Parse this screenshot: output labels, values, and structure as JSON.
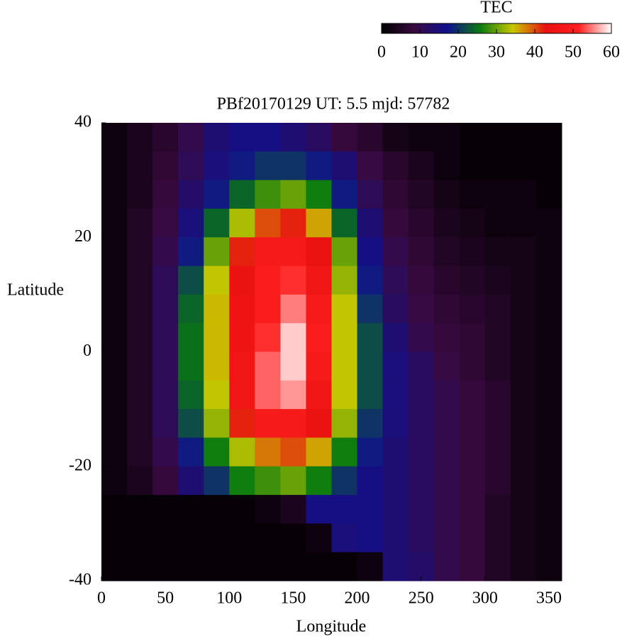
{
  "chart_data": {
    "type": "heatmap",
    "title": "PBf20170129  UT: 5.5  mjd: 57782",
    "xlabel": "Longitude",
    "ylabel": "Latitude",
    "xlim": [
      0,
      360
    ],
    "xticks": [
      0,
      50,
      100,
      150,
      200,
      250,
      300,
      350
    ],
    "ylim": [
      -40,
      40
    ],
    "yticks": [
      -40,
      -20,
      0,
      20,
      40
    ],
    "x": [
      10,
      30,
      50,
      70,
      90,
      110,
      130,
      150,
      170,
      190,
      210,
      230,
      250,
      270,
      290,
      310,
      330,
      350
    ],
    "y": [
      37.5,
      32.5,
      27.5,
      22.5,
      17.5,
      12.5,
      7.5,
      2.5,
      -2.5,
      -7.5,
      -12.5,
      -17.5,
      -22.5,
      -27.5,
      -32.5,
      -37.5
    ],
    "z": [
      [
        2,
        4,
        6,
        10,
        14,
        16,
        16,
        14,
        12,
        8,
        6,
        3,
        2,
        2,
        1,
        1,
        1,
        1
      ],
      [
        2,
        4,
        7,
        11,
        15,
        18,
        20,
        20,
        18,
        14,
        9,
        6,
        4,
        2,
        1,
        1,
        1,
        1
      ],
      [
        2,
        4,
        8,
        13,
        18,
        24,
        28,
        30,
        26,
        18,
        11,
        7,
        5,
        3,
        2,
        2,
        2,
        1
      ],
      [
        2,
        5,
        9,
        15,
        24,
        33,
        40,
        42,
        36,
        24,
        14,
        8,
        6,
        4,
        3,
        2,
        2,
        2
      ],
      [
        2,
        5,
        10,
        18,
        30,
        42,
        48,
        48,
        44,
        30,
        16,
        10,
        7,
        5,
        4,
        3,
        3,
        2
      ],
      [
        2,
        5,
        11,
        22,
        34,
        44,
        50,
        52,
        46,
        32,
        18,
        11,
        8,
        6,
        5,
        4,
        3,
        2
      ],
      [
        2,
        5,
        11,
        24,
        35,
        45,
        50,
        55,
        48,
        34,
        20,
        12,
        9,
        7,
        6,
        5,
        3,
        2
      ],
      [
        2,
        5,
        11,
        25,
        35,
        45,
        52,
        58,
        50,
        34,
        22,
        14,
        10,
        8,
        7,
        5,
        3,
        2
      ],
      [
        2,
        5,
        11,
        25,
        35,
        46,
        54,
        58,
        48,
        34,
        22,
        15,
        12,
        9,
        7,
        5,
        3,
        2
      ],
      [
        2,
        5,
        11,
        24,
        34,
        46,
        54,
        56,
        46,
        34,
        22,
        15,
        12,
        10,
        8,
        6,
        3,
        2
      ],
      [
        2,
        5,
        11,
        22,
        32,
        42,
        48,
        48,
        44,
        32,
        20,
        15,
        12,
        10,
        8,
        6,
        3,
        2
      ],
      [
        2,
        5,
        10,
        18,
        26,
        33,
        38,
        40,
        36,
        26,
        18,
        14,
        12,
        10,
        8,
        6,
        3,
        2
      ],
      [
        2,
        4,
        8,
        14,
        20,
        26,
        28,
        30,
        26,
        20,
        16,
        14,
        12,
        10,
        8,
        6,
        3,
        2
      ],
      [
        1,
        1,
        1,
        1,
        1,
        1,
        2,
        4,
        16,
        16,
        16,
        14,
        12,
        10,
        8,
        5,
        3,
        2
      ],
      [
        1,
        1,
        1,
        1,
        1,
        1,
        1,
        1,
        2,
        15,
        16,
        14,
        12,
        10,
        8,
        5,
        3,
        2
      ],
      [
        1,
        1,
        1,
        1,
        1,
        1,
        1,
        1,
        1,
        1,
        2,
        14,
        13,
        10,
        8,
        5,
        3,
        2
      ]
    ],
    "colorbar": {
      "label": "TEC",
      "lim": [
        0,
        60
      ],
      "ticks": [
        0,
        10,
        20,
        30,
        40,
        50,
        60
      ]
    },
    "colormap": [
      "#000000",
      "#3a0a40",
      "#10108e",
      "#0a7a10",
      "#c8c800",
      "#e81010",
      "#ff2020",
      "#ffffff"
    ]
  }
}
